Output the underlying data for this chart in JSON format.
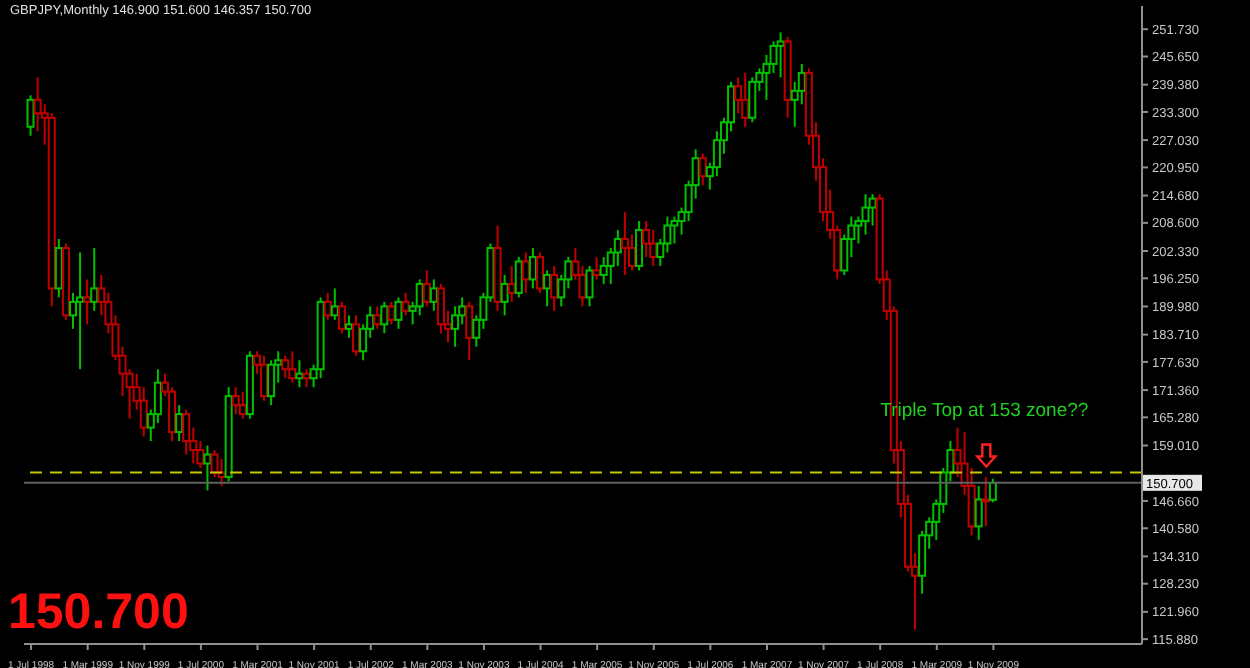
{
  "chart_data": {
    "type": "candlestick",
    "title": "GBPJPY,Monthly  146.900 151.600 146.357 150.700",
    "x": [
      "1998-07",
      "1998-08",
      "1998-09",
      "1998-10",
      "1998-11",
      "1998-12",
      "1999-01",
      "1999-02",
      "1999-03",
      "1999-04",
      "1999-05",
      "1999-06",
      "1999-07",
      "1999-08",
      "1999-09",
      "1999-10",
      "1999-11",
      "1999-12",
      "2000-01",
      "2000-02",
      "2000-03",
      "2000-04",
      "2000-05",
      "2000-06",
      "2000-07",
      "2000-08",
      "2000-09",
      "2000-10",
      "2000-11",
      "2000-12",
      "2001-01",
      "2001-02",
      "2001-03",
      "2001-04",
      "2001-05",
      "2001-06",
      "2001-07",
      "2001-08",
      "2001-09",
      "2001-10",
      "2001-11",
      "2001-12",
      "2002-01",
      "2002-02",
      "2002-03",
      "2002-04",
      "2002-05",
      "2002-06",
      "2002-07",
      "2002-08",
      "2002-09",
      "2002-10",
      "2002-11",
      "2002-12",
      "2003-01",
      "2003-02",
      "2003-03",
      "2003-04",
      "2003-05",
      "2003-06",
      "2003-07",
      "2003-08",
      "2003-09",
      "2003-10",
      "2003-11",
      "2003-12",
      "2004-01",
      "2004-02",
      "2004-03",
      "2004-04",
      "2004-05",
      "2004-06",
      "2004-07",
      "2004-08",
      "2004-09",
      "2004-10",
      "2004-11",
      "2004-12",
      "2005-01",
      "2005-02",
      "2005-03",
      "2005-04",
      "2005-05",
      "2005-06",
      "2005-07",
      "2005-08",
      "2005-09",
      "2005-10",
      "2005-11",
      "2005-12",
      "2006-01",
      "2006-02",
      "2006-03",
      "2006-04",
      "2006-05",
      "2006-06",
      "2006-07",
      "2006-08",
      "2006-09",
      "2006-10",
      "2006-11",
      "2006-12",
      "2007-01",
      "2007-02",
      "2007-03",
      "2007-04",
      "2007-05",
      "2007-06",
      "2007-07",
      "2007-08",
      "2007-09",
      "2007-10",
      "2007-11",
      "2007-12",
      "2008-01",
      "2008-02",
      "2008-03",
      "2008-04",
      "2008-05",
      "2008-06",
      "2008-07",
      "2008-08",
      "2008-09",
      "2008-10",
      "2008-11",
      "2008-12",
      "2009-01",
      "2009-02",
      "2009-03",
      "2009-04",
      "2009-05",
      "2009-06",
      "2009-07",
      "2009-08",
      "2009-09",
      "2009-10",
      "2009-11"
    ],
    "ohlc": [
      [
        230,
        237,
        228,
        236
      ],
      [
        236,
        241,
        229,
        233
      ],
      [
        233,
        235,
        226,
        232
      ],
      [
        232,
        233,
        190,
        194
      ],
      [
        194,
        205,
        192,
        203
      ],
      [
        203,
        204,
        187,
        188
      ],
      [
        188,
        193,
        185,
        191
      ],
      [
        191,
        202,
        176,
        192
      ],
      [
        192,
        196,
        186,
        191
      ],
      [
        191,
        203,
        189,
        194
      ],
      [
        194,
        197,
        188,
        191
      ],
      [
        191,
        193,
        184,
        186
      ],
      [
        186,
        188,
        178,
        179
      ],
      [
        179,
        181,
        170,
        175
      ],
      [
        175,
        176,
        165,
        172
      ],
      [
        172,
        175,
        167,
        169
      ],
      [
        169,
        172,
        161,
        163
      ],
      [
        163,
        167,
        160,
        166
      ],
      [
        166,
        176,
        164,
        173
      ],
      [
        173,
        175,
        170,
        171
      ],
      [
        171,
        172,
        160,
        162
      ],
      [
        162,
        168,
        160,
        166
      ],
      [
        166,
        167,
        157,
        160
      ],
      [
        160,
        163,
        155,
        158
      ],
      [
        158,
        160,
        154,
        155
      ],
      [
        155,
        159,
        149,
        157
      ],
      [
        157,
        158,
        152,
        153
      ],
      [
        153,
        156,
        150,
        152
      ],
      [
        152,
        172,
        151,
        170
      ],
      [
        170,
        172,
        166,
        168
      ],
      [
        168,
        171,
        165,
        166
      ],
      [
        166,
        180,
        165,
        179
      ],
      [
        179,
        180,
        175,
        177
      ],
      [
        177,
        179,
        169,
        170
      ],
      [
        170,
        178,
        168,
        177
      ],
      [
        177,
        180,
        173,
        178
      ],
      [
        178,
        179,
        174,
        176
      ],
      [
        176,
        180,
        173,
        174
      ],
      [
        174,
        178,
        172,
        175
      ],
      [
        175,
        176,
        172,
        174
      ],
      [
        174,
        177,
        172,
        176
      ],
      [
        176,
        192,
        174,
        191
      ],
      [
        191,
        193,
        187,
        188
      ],
      [
        188,
        194,
        187,
        190
      ],
      [
        190,
        191,
        184,
        185
      ],
      [
        185,
        188,
        183,
        186
      ],
      [
        186,
        188,
        179,
        180
      ],
      [
        180,
        186,
        178,
        185
      ],
      [
        185,
        190,
        183,
        188
      ],
      [
        188,
        190,
        185,
        186
      ],
      [
        186,
        191,
        184,
        190
      ],
      [
        190,
        191,
        186,
        187
      ],
      [
        187,
        192,
        185,
        191
      ],
      [
        191,
        193,
        188,
        189
      ],
      [
        189,
        191,
        186,
        190
      ],
      [
        190,
        196,
        188,
        195
      ],
      [
        195,
        198,
        190,
        191
      ],
      [
        191,
        196,
        189,
        194
      ],
      [
        194,
        195,
        184,
        186
      ],
      [
        186,
        189,
        182,
        185
      ],
      [
        185,
        190,
        181,
        188
      ],
      [
        188,
        192,
        186,
        190
      ],
      [
        190,
        191,
        178,
        183
      ],
      [
        183,
        188,
        181,
        187
      ],
      [
        187,
        193,
        185,
        192
      ],
      [
        192,
        204,
        191,
        203
      ],
      [
        203,
        208,
        189,
        191
      ],
      [
        191,
        197,
        188,
        195
      ],
      [
        195,
        199,
        191,
        193
      ],
      [
        193,
        201,
        192,
        200
      ],
      [
        200,
        202,
        193,
        196
      ],
      [
        196,
        203,
        194,
        201
      ],
      [
        201,
        202,
        193,
        194
      ],
      [
        194,
        198,
        190,
        197
      ],
      [
        197,
        199,
        189,
        192
      ],
      [
        192,
        197,
        190,
        196
      ],
      [
        196,
        201,
        194,
        200
      ],
      [
        200,
        203,
        196,
        197
      ],
      [
        197,
        199,
        190,
        192
      ],
      [
        192,
        199,
        190,
        198
      ],
      [
        198,
        201,
        196,
        197
      ],
      [
        197,
        201,
        195,
        199
      ],
      [
        199,
        203,
        195,
        202
      ],
      [
        202,
        207,
        199,
        205
      ],
      [
        205,
        211,
        197,
        203
      ],
      [
        203,
        206,
        198,
        199
      ],
      [
        199,
        209,
        198,
        207
      ],
      [
        207,
        209,
        201,
        204
      ],
      [
        204,
        207,
        199,
        201
      ],
      [
        201,
        205,
        199,
        204
      ],
      [
        204,
        210,
        202,
        208
      ],
      [
        208,
        210,
        204,
        209
      ],
      [
        209,
        212,
        206,
        211
      ],
      [
        211,
        218,
        209,
        217
      ],
      [
        217,
        225,
        214,
        223
      ],
      [
        223,
        224,
        217,
        219
      ],
      [
        219,
        222,
        216,
        221
      ],
      [
        221,
        229,
        219,
        227
      ],
      [
        227,
        232,
        224,
        231
      ],
      [
        231,
        240,
        229,
        239
      ],
      [
        239,
        241,
        233,
        236
      ],
      [
        236,
        242,
        230,
        232
      ],
      [
        232,
        241,
        231,
        240
      ],
      [
        240,
        243,
        238,
        242
      ],
      [
        242,
        246,
        236,
        244
      ],
      [
        244,
        249,
        242,
        248
      ],
      [
        248,
        251,
        241,
        249
      ],
      [
        249,
        250,
        232,
        236
      ],
      [
        236,
        240,
        230,
        238
      ],
      [
        238,
        244,
        235,
        242
      ],
      [
        242,
        243,
        226,
        228
      ],
      [
        228,
        231,
        218,
        221
      ],
      [
        221,
        223,
        209,
        211
      ],
      [
        211,
        216,
        205,
        207
      ],
      [
        207,
        208,
        196,
        198
      ],
      [
        198,
        206,
        197,
        205
      ],
      [
        205,
        210,
        201,
        208
      ],
      [
        208,
        210,
        204,
        209
      ],
      [
        209,
        215,
        206,
        212
      ],
      [
        212,
        215,
        208,
        214
      ],
      [
        214,
        215,
        195,
        196
      ],
      [
        196,
        198,
        187,
        189
      ],
      [
        189,
        190,
        155,
        158
      ],
      [
        158,
        160,
        143,
        146
      ],
      [
        146,
        148,
        131,
        132
      ],
      [
        132,
        135,
        118,
        130
      ],
      [
        130,
        140,
        126,
        139
      ],
      [
        139,
        143,
        136,
        142
      ],
      [
        142,
        147,
        138,
        146
      ],
      [
        146,
        154,
        144,
        153
      ],
      [
        153,
        160,
        151,
        158
      ],
      [
        158,
        163,
        152,
        155
      ],
      [
        155,
        162,
        148,
        150
      ],
      [
        150,
        154,
        139,
        141
      ],
      [
        141,
        150,
        138,
        147
      ],
      [
        147,
        152,
        141,
        146.9
      ],
      [
        146.9,
        151.6,
        146.357,
        150.7
      ]
    ],
    "colors": [
      "#00c000",
      "#c00000",
      "#c00000",
      "#c00000",
      "#00c000",
      "#c00000",
      "#00c000",
      "#00c000",
      "#c00000",
      "#00c000",
      "#c00000",
      "#c00000",
      "#c00000",
      "#c00000",
      "#c00000",
      "#c00000",
      "#c00000",
      "#00c000",
      "#00c000",
      "#c00000",
      "#c00000",
      "#00c000",
      "#c00000",
      "#c00000",
      "#c00000",
      "#00c000",
      "#c00000",
      "#c00000",
      "#00c000",
      "#c00000",
      "#c00000",
      "#00c000",
      "#c00000",
      "#c00000",
      "#00c000",
      "#00c000",
      "#c00000",
      "#c00000",
      "#00c000",
      "#c00000",
      "#00c000",
      "#00c000",
      "#c00000",
      "#00c000",
      "#c00000",
      "#00c000",
      "#c00000",
      "#00c000",
      "#00c000",
      "#c00000",
      "#00c000",
      "#c00000",
      "#00c000",
      "#c00000",
      "#00c000",
      "#00c000",
      "#c00000",
      "#00c000",
      "#c00000",
      "#c00000",
      "#00c000",
      "#00c000",
      "#c00000",
      "#00c000",
      "#00c000",
      "#00c000",
      "#c00000",
      "#00c000",
      "#c00000",
      "#00c000",
      "#c00000",
      "#00c000",
      "#c00000",
      "#00c000",
      "#c00000",
      "#00c000",
      "#00c000",
      "#c00000",
      "#c00000",
      "#00c000",
      "#c00000",
      "#00c000",
      "#00c000",
      "#00c000",
      "#c00000",
      "#c00000",
      "#00c000",
      "#c00000",
      "#c00000",
      "#00c000",
      "#00c000",
      "#00c000",
      "#00c000",
      "#00c000",
      "#00c000",
      "#c00000",
      "#00c000",
      "#00c000",
      "#00c000",
      "#00c000",
      "#c00000",
      "#c00000",
      "#00c000",
      "#00c000",
      "#00c000",
      "#00c000",
      "#00c000",
      "#c00000",
      "#00c000",
      "#00c000",
      "#c00000",
      "#c00000",
      "#c00000",
      "#c00000",
      "#c00000",
      "#00c000",
      "#00c000",
      "#00c000",
      "#00c000",
      "#00c000",
      "#c00000",
      "#c00000",
      "#c00000",
      "#c00000",
      "#c00000",
      "#c00000",
      "#00c000",
      "#00c000",
      "#00c000",
      "#00c000",
      "#00c000",
      "#c00000",
      "#c00000",
      "#c00000",
      "#00c000",
      "#c00000",
      "#00c000"
    ],
    "xlim": [
      "1998-06",
      "2011-08"
    ],
    "xticks": [
      {
        "value": "1998-07",
        "label": "1 Jul 1998"
      },
      {
        "value": "1999-03",
        "label": "1 Mar 1999"
      },
      {
        "value": "1999-11",
        "label": "1 Nov 1999"
      },
      {
        "value": "2000-07",
        "label": "1 Jul 2000"
      },
      {
        "value": "2001-03",
        "label": "1 Mar 2001"
      },
      {
        "value": "2001-11",
        "label": "1 Nov 2001"
      },
      {
        "value": "2002-07",
        "label": "1 Jul 2002"
      },
      {
        "value": "2003-03",
        "label": "1 Mar 2003"
      },
      {
        "value": "2003-11",
        "label": "1 Nov 2003"
      },
      {
        "value": "2004-07",
        "label": "1 Jul 2004"
      },
      {
        "value": "2005-03",
        "label": "1 Mar 2005"
      },
      {
        "value": "2005-11",
        "label": "1 Nov 2005"
      },
      {
        "value": "2006-07",
        "label": "1 Jul 2006"
      },
      {
        "value": "2007-03",
        "label": "1 Mar 2007"
      },
      {
        "value": "2007-11",
        "label": "1 Nov 2007"
      },
      {
        "value": "2008-07",
        "label": "1 Jul 2008"
      },
      {
        "value": "2009-03",
        "label": "1 Mar 2009"
      },
      {
        "value": "2009-11",
        "label": "1 Nov 2009"
      }
    ],
    "ylim": [
      114.8,
      256.9
    ],
    "yticks": [
      {
        "value": 251.73,
        "label": "251.730"
      },
      {
        "value": 245.65,
        "label": "245.650"
      },
      {
        "value": 239.38,
        "label": "239.380"
      },
      {
        "value": 233.3,
        "label": "233.300"
      },
      {
        "value": 227.03,
        "label": "227.030"
      },
      {
        "value": 220.95,
        "label": "220.950"
      },
      {
        "value": 214.68,
        "label": "214.680"
      },
      {
        "value": 208.6,
        "label": "208.600"
      },
      {
        "value": 202.33,
        "label": "202.330"
      },
      {
        "value": 196.25,
        "label": "196.250"
      },
      {
        "value": 189.98,
        "label": "189.980"
      },
      {
        "value": 183.71,
        "label": "183.710"
      },
      {
        "value": 177.63,
        "label": "177.630"
      },
      {
        "value": 171.36,
        "label": "171.360"
      },
      {
        "value": 165.28,
        "label": "165.280"
      },
      {
        "value": 159.01,
        "label": "159.010"
      },
      {
        "value": 146.66,
        "label": "146.660"
      },
      {
        "value": 140.58,
        "label": "140.580"
      },
      {
        "value": 134.31,
        "label": "134.310"
      },
      {
        "value": 128.23,
        "label": "128.230"
      },
      {
        "value": 121.96,
        "label": "121.960"
      },
      {
        "value": 115.88,
        "label": "115.880"
      }
    ],
    "ref_lines": [
      {
        "axis": "y",
        "value": 153,
        "color": "#c8c800",
        "line_style": "dashed"
      },
      {
        "axis": "y",
        "value": 150.7,
        "label": "150.700",
        "color": "#606060",
        "line_style": "solid"
      }
    ],
    "annotations": [
      {
        "text": "Triple Top at 153 zone??",
        "x": "2009-10",
        "y": 153
      },
      "150.700"
    ]
  }
}
